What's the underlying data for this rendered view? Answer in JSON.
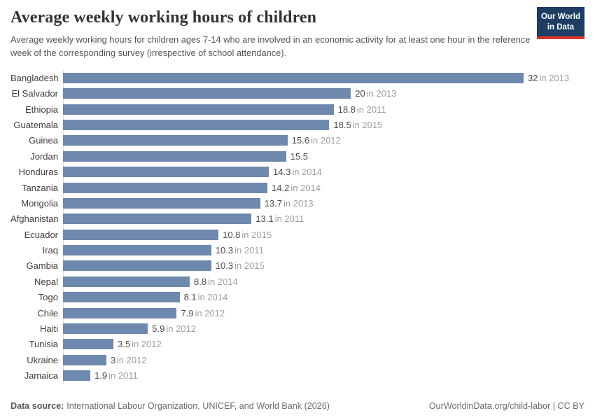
{
  "header": {
    "title": "Average weekly working hours of children",
    "subtitle": "Average weekly working hours for children ages 7-14 who are involved in an economic activity for at least one hour in the reference week of the corresponding survey (irrespective of school attendance).",
    "logo_line1": "Our World",
    "logo_line2": "in Data"
  },
  "chart_data": {
    "type": "bar",
    "orientation": "horizontal",
    "title": "Average weekly working hours of children",
    "xlabel": "",
    "ylabel": "",
    "unit": "hours per week",
    "xlim": [
      0,
      32
    ],
    "grid": false,
    "legend": false,
    "categories": [
      "Bangladesh",
      "El Salvador",
      "Ethiopia",
      "Guatemala",
      "Guinea",
      "Jordan",
      "Honduras",
      "Tanzania",
      "Mongolia",
      "Afghanistan",
      "Ecuador",
      "Iraq",
      "Gambia",
      "Nepal",
      "Togo",
      "Chile",
      "Haiti",
      "Tunisia",
      "Ukraine",
      "Jamaica"
    ],
    "values": [
      32,
      20,
      18.8,
      18.5,
      15.6,
      15.5,
      14.3,
      14.2,
      13.7,
      13.1,
      10.8,
      10.3,
      10.3,
      8.8,
      8.1,
      7.9,
      5.9,
      3.5,
      3,
      1.9
    ],
    "rows": [
      {
        "country": "Bangladesh",
        "value": 32,
        "value_label": "32",
        "year_label": "in 2013"
      },
      {
        "country": "El Salvador",
        "value": 20,
        "value_label": "20",
        "year_label": "in 2013"
      },
      {
        "country": "Ethiopia",
        "value": 18.8,
        "value_label": "18.8",
        "year_label": "in 2011"
      },
      {
        "country": "Guatemala",
        "value": 18.5,
        "value_label": "18.5",
        "year_label": "in 2015"
      },
      {
        "country": "Guinea",
        "value": 15.6,
        "value_label": "15.6",
        "year_label": "in 2012"
      },
      {
        "country": "Jordan",
        "value": 15.5,
        "value_label": "15.5",
        "year_label": ""
      },
      {
        "country": "Honduras",
        "value": 14.3,
        "value_label": "14.3",
        "year_label": "in 2014"
      },
      {
        "country": "Tanzania",
        "value": 14.2,
        "value_label": "14.2",
        "year_label": "in 2014"
      },
      {
        "country": "Mongolia",
        "value": 13.7,
        "value_label": "13.7",
        "year_label": "in 2013"
      },
      {
        "country": "Afghanistan",
        "value": 13.1,
        "value_label": "13.1",
        "year_label": "in 2011"
      },
      {
        "country": "Ecuador",
        "value": 10.8,
        "value_label": "10.8",
        "year_label": "in 2015"
      },
      {
        "country": "Iraq",
        "value": 10.3,
        "value_label": "10.3",
        "year_label": "in 2011"
      },
      {
        "country": "Gambia",
        "value": 10.3,
        "value_label": "10.3",
        "year_label": "in 2015"
      },
      {
        "country": "Nepal",
        "value": 8.8,
        "value_label": "8.8",
        "year_label": "in 2014"
      },
      {
        "country": "Togo",
        "value": 8.1,
        "value_label": "8.1",
        "year_label": "in 2014"
      },
      {
        "country": "Chile",
        "value": 7.9,
        "value_label": "7.9",
        "year_label": "in 2012"
      },
      {
        "country": "Haiti",
        "value": 5.9,
        "value_label": "5.9",
        "year_label": "in 2012"
      },
      {
        "country": "Tunisia",
        "value": 3.5,
        "value_label": "3.5",
        "year_label": "in 2012"
      },
      {
        "country": "Ukraine",
        "value": 3,
        "value_label": "3",
        "year_label": "in 2012"
      },
      {
        "country": "Jamaica",
        "value": 1.9,
        "value_label": "1.9",
        "year_label": "in 2011"
      }
    ]
  },
  "footer": {
    "source_label": "Data source:",
    "source_text": "International Labour Organization, UNICEF, and World Bank (2026)",
    "license_text": "OurWorldinData.org/child-labor | CC BY"
  },
  "colors": {
    "bar": "#6f88ad",
    "title_text": "#333333",
    "subtitle_text": "#555555",
    "value_text": "#4d4d4d",
    "year_text": "#9e9e9e",
    "axis_line": "#dcdcdc",
    "logo_navy": "#1d3d63",
    "logo_red": "#dc352b",
    "background": "#ffffff"
  }
}
